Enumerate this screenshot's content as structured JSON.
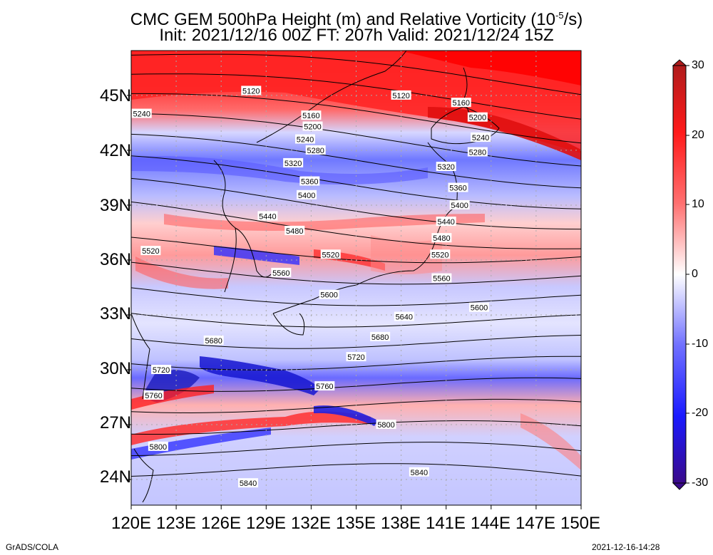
{
  "title": {
    "line1_prefix": "CMC GEM 500hPa Height (m) and Relative Vorticity (10",
    "line1_exp": "-5",
    "line1_suffix": "/s)",
    "line2": "Init: 2021/12/16 00Z  FT: 207h  Valid: 2021/12/24 15Z"
  },
  "axes": {
    "lat_labels": [
      "45N",
      "42N",
      "39N",
      "36N",
      "33N",
      "30N",
      "27N",
      "24N"
    ],
    "lon_labels": [
      "120E",
      "123E",
      "126E",
      "129E",
      "132E",
      "135E",
      "138E",
      "141E",
      "144E",
      "147E",
      "150E"
    ]
  },
  "colorbar": {
    "ticks": [
      "30",
      "20",
      "10",
      "0",
      "-10",
      "-20",
      "-30"
    ],
    "colors": [
      "#b01c1c",
      "#ff1a1a",
      "#ff7070",
      "#ffffff",
      "#7070ff",
      "#1a1aff",
      "#3a0a8a"
    ]
  },
  "contours": [
    "5120",
    "5160",
    "5200",
    "5240",
    "5280",
    "5320",
    "5360",
    "5400",
    "5440",
    "5480",
    "5520",
    "5560",
    "5600",
    "5640",
    "5680",
    "5720",
    "5760",
    "5800",
    "5840"
  ],
  "contour_labels": [
    {
      "text": "5120",
      "lon": 128.0,
      "lat": 45.25
    },
    {
      "text": "5120",
      "lon": 138.0,
      "lat": 45.0
    },
    {
      "text": "5240",
      "lon": 120.7,
      "lat": 44.0
    },
    {
      "text": "5160",
      "lon": 132.0,
      "lat": 43.9
    },
    {
      "text": "5160",
      "lon": 142.0,
      "lat": 44.6
    },
    {
      "text": "5200",
      "lon": 132.1,
      "lat": 43.3
    },
    {
      "text": "5200",
      "lon": 143.1,
      "lat": 43.8
    },
    {
      "text": "5240",
      "lon": 131.6,
      "lat": 42.6
    },
    {
      "text": "5240",
      "lon": 143.3,
      "lat": 42.7
    },
    {
      "text": "5280",
      "lon": 132.3,
      "lat": 42.0
    },
    {
      "text": "5280",
      "lon": 143.1,
      "lat": 41.9
    },
    {
      "text": "5320",
      "lon": 130.8,
      "lat": 41.3
    },
    {
      "text": "5320",
      "lon": 141.0,
      "lat": 41.1
    },
    {
      "text": "5360",
      "lon": 131.9,
      "lat": 40.3
    },
    {
      "text": "5360",
      "lon": 141.8,
      "lat": 39.95
    },
    {
      "text": "5400",
      "lon": 131.7,
      "lat": 39.55
    },
    {
      "text": "5400",
      "lon": 141.9,
      "lat": 39.0
    },
    {
      "text": "5440",
      "lon": 129.1,
      "lat": 38.4
    },
    {
      "text": "5440",
      "lon": 141.0,
      "lat": 38.1
    },
    {
      "text": "5480",
      "lon": 130.9,
      "lat": 37.6
    },
    {
      "text": "5480",
      "lon": 140.7,
      "lat": 37.2
    },
    {
      "text": "5520",
      "lon": 121.3,
      "lat": 36.5
    },
    {
      "text": "5520",
      "lon": 133.3,
      "lat": 36.3
    },
    {
      "text": "5520",
      "lon": 140.6,
      "lat": 36.3
    },
    {
      "text": "5560",
      "lon": 130.0,
      "lat": 35.3
    },
    {
      "text": "5560",
      "lon": 140.7,
      "lat": 35.0
    },
    {
      "text": "5600",
      "lon": 133.2,
      "lat": 34.1
    },
    {
      "text": "5600",
      "lon": 143.2,
      "lat": 33.4
    },
    {
      "text": "5640",
      "lon": 138.2,
      "lat": 32.9
    },
    {
      "text": "5680",
      "lon": 125.5,
      "lat": 31.6
    },
    {
      "text": "5680",
      "lon": 136.6,
      "lat": 31.8
    },
    {
      "text": "5720",
      "lon": 122.0,
      "lat": 30.0
    },
    {
      "text": "5720",
      "lon": 135.0,
      "lat": 30.7
    },
    {
      "text": "5760",
      "lon": 121.5,
      "lat": 28.6
    },
    {
      "text": "5760",
      "lon": 132.9,
      "lat": 29.1
    },
    {
      "text": "5800",
      "lon": 137.0,
      "lat": 27.0
    },
    {
      "text": "5800",
      "lon": 121.8,
      "lat": 25.8
    },
    {
      "text": "5840",
      "lon": 127.8,
      "lat": 23.8
    },
    {
      "text": "5840",
      "lon": 139.2,
      "lat": 24.4
    }
  ],
  "footer": {
    "left": "GrADS/COLA",
    "right": "2021-12-16-14:28"
  }
}
